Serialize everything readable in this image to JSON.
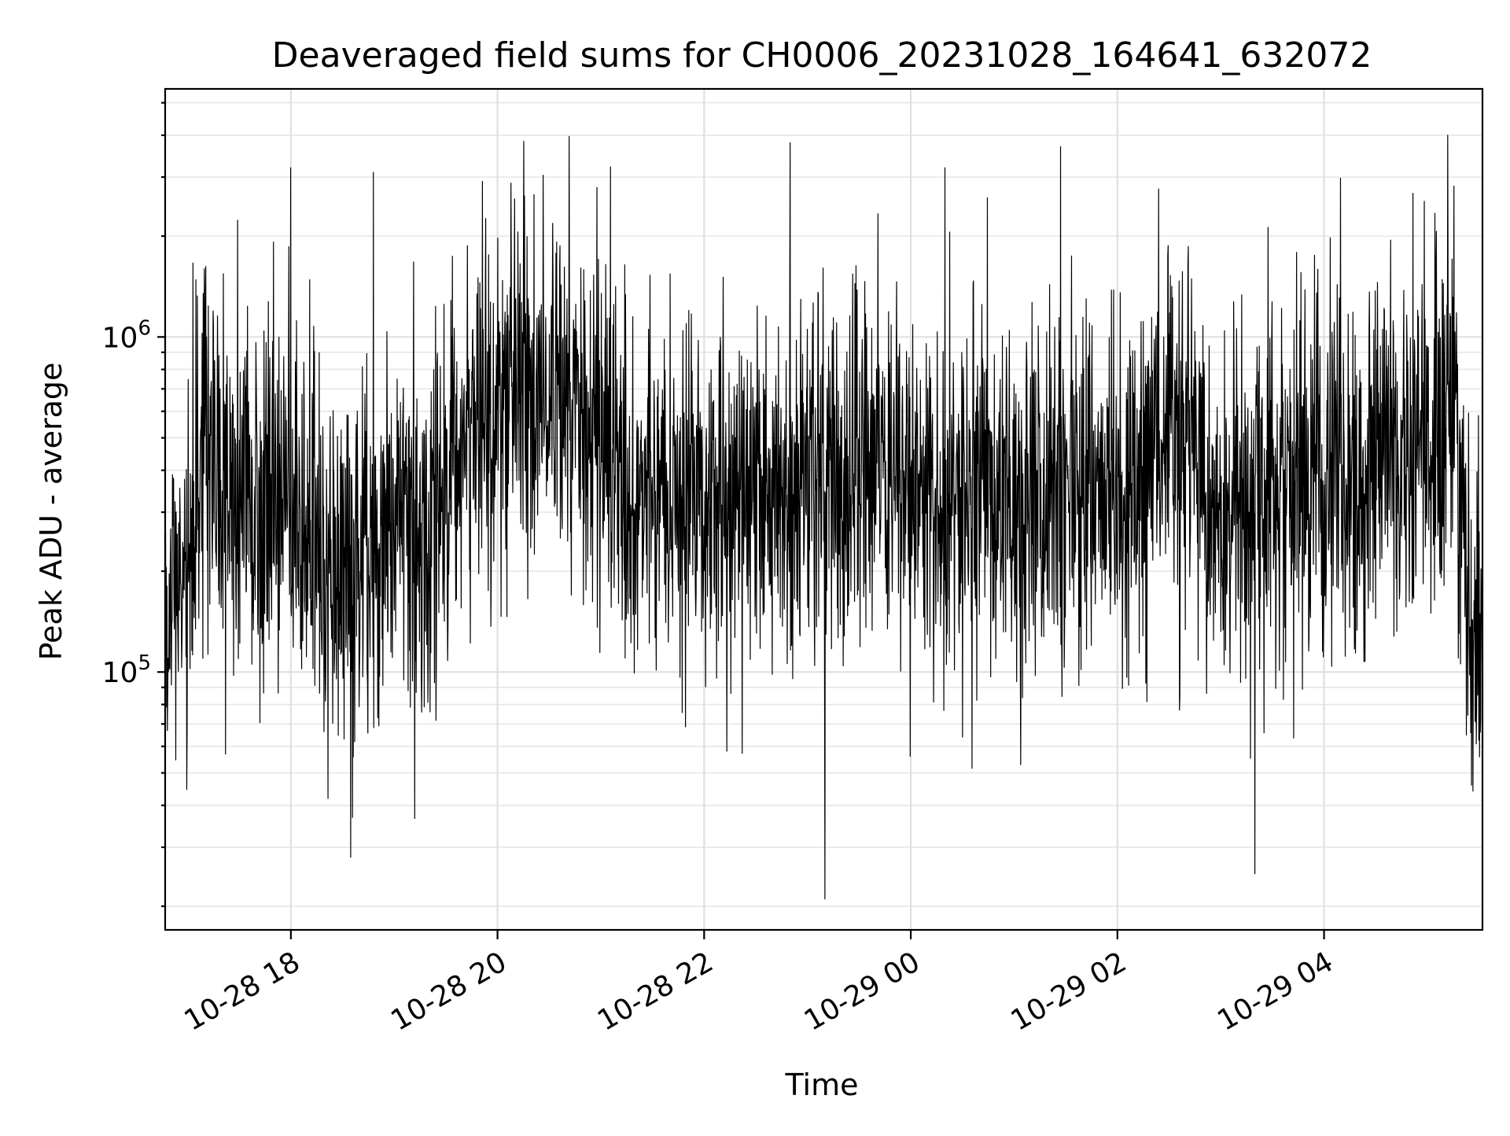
{
  "chart_data": {
    "type": "line",
    "title": "Deaveraged field sums for CH0006_20231028_164641_632072",
    "xlabel": "Time",
    "ylabel": "Peak ADU - average",
    "y_scale": "log",
    "ylim": [
      17000,
      5500000
    ],
    "xlim": [
      "2023-10-28 16:47",
      "2023-10-29 05:32"
    ],
    "grid": true,
    "legend": "none",
    "line_color": "#000000",
    "x_ticks": [
      {
        "value": "2023-10-28 18:00",
        "label": "10-28 18"
      },
      {
        "value": "2023-10-28 20:00",
        "label": "10-28 20"
      },
      {
        "value": "2023-10-28 22:00",
        "label": "10-28 22"
      },
      {
        "value": "2023-10-29 00:00",
        "label": "10-29 00"
      },
      {
        "value": "2023-10-29 02:00",
        "label": "10-29 02"
      },
      {
        "value": "2023-10-29 04:00",
        "label": "10-29 04"
      }
    ],
    "y_ticks": [
      {
        "value": 100000,
        "label_base": "10",
        "label_exp": "5"
      },
      {
        "value": 1000000,
        "label_base": "10",
        "label_exp": "6"
      }
    ],
    "series": [
      {
        "x": [
          "2023-10-28 16:47",
          "2023-10-28 17:00",
          "2023-10-28 17:10",
          "2023-10-28 17:20",
          "2023-10-28 17:40",
          "2023-10-28 18:00",
          "2023-10-28 18:20",
          "2023-10-28 18:40",
          "2023-10-28 19:00",
          "2023-10-28 19:20",
          "2023-10-28 19:40",
          "2023-10-28 20:00",
          "2023-10-28 20:20",
          "2023-10-28 20:40",
          "2023-10-28 21:00",
          "2023-10-28 21:20",
          "2023-10-28 21:40",
          "2023-10-28 22:00",
          "2023-10-28 22:20",
          "2023-10-28 22:40",
          "2023-10-28 23:00",
          "2023-10-28 23:20",
          "2023-10-28 23:40",
          "2023-10-29 00:00",
          "2023-10-29 00:20",
          "2023-10-29 00:40",
          "2023-10-29 01:00",
          "2023-10-29 01:20",
          "2023-10-29 01:40",
          "2023-10-29 02:00",
          "2023-10-29 02:20",
          "2023-10-29 02:40",
          "2023-10-29 03:00",
          "2023-10-29 03:20",
          "2023-10-29 03:40",
          "2023-10-29 04:00",
          "2023-10-29 04:20",
          "2023-10-29 04:40",
          "2023-10-29 05:00",
          "2023-10-29 05:15",
          "2023-10-29 05:25",
          "2023-10-29 05:32"
        ],
        "y": [
          120000,
          220000,
          600000,
          350000,
          330000,
          300000,
          220000,
          200000,
          260000,
          250000,
          560000,
          650000,
          700000,
          650000,
          450000,
          330000,
          350000,
          300000,
          330000,
          350000,
          360000,
          370000,
          470000,
          380000,
          360000,
          360000,
          340000,
          330000,
          360000,
          340000,
          500000,
          520000,
          260000,
          360000,
          420000,
          400000,
          420000,
          450000,
          470000,
          600000,
          150000,
          110000
        ],
        "spikes_high": [
          {
            "x": "2023-10-28 18:00",
            "y": 3200000
          },
          {
            "x": "2023-10-28 18:48",
            "y": 3100000
          },
          {
            "x": "2023-10-28 22:50",
            "y": 3800000
          },
          {
            "x": "2023-10-29 00:20",
            "y": 3200000
          },
          {
            "x": "2023-10-29 01:27",
            "y": 3700000
          },
          {
            "x": "2023-10-29 05:12",
            "y": 4000000
          }
        ],
        "spikes_low": [
          {
            "x": "2023-10-28 18:35",
            "y": 28000
          },
          {
            "x": "2023-10-28 23:10",
            "y": 21000
          },
          {
            "x": "2023-10-29 03:20",
            "y": 25000
          }
        ]
      }
    ]
  }
}
